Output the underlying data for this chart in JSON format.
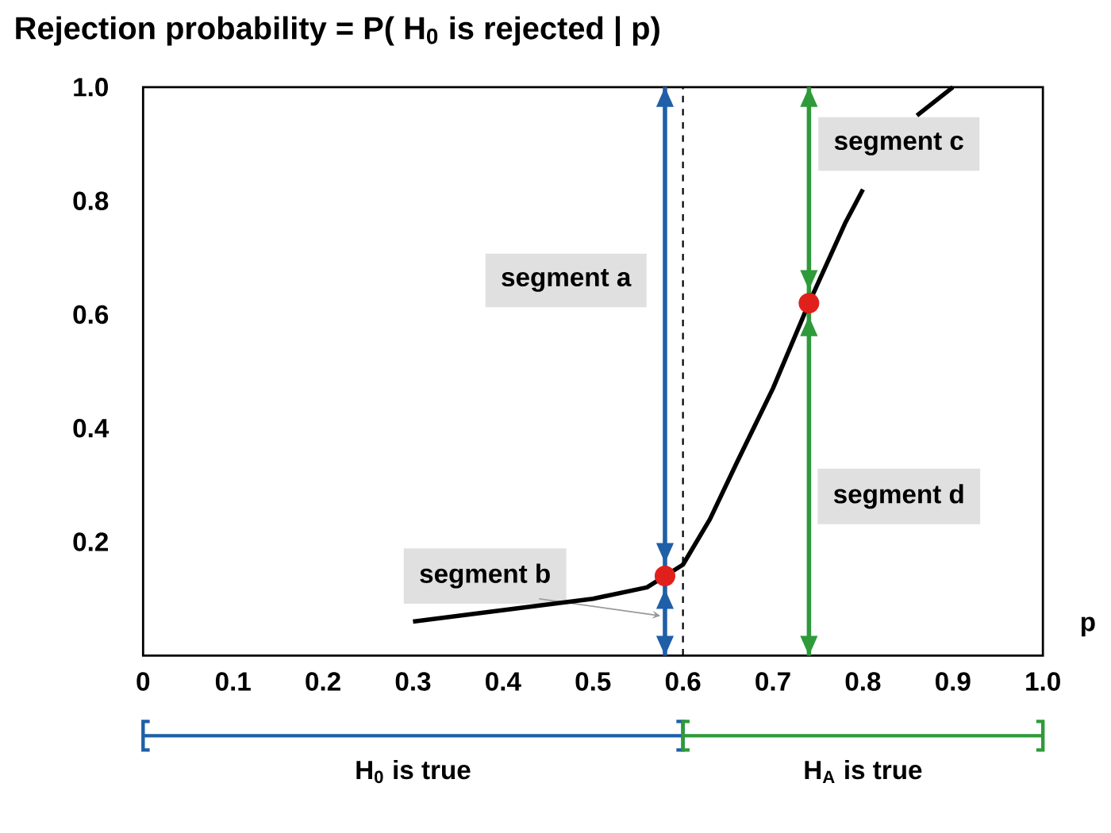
{
  "chart_data": {
    "type": "line",
    "title": "Rejection probability = P( H$_{0}$ is rejected | p)",
    "xlabel": "p",
    "xlim": [
      0,
      1
    ],
    "ylim": [
      0,
      1
    ],
    "xticks": [
      0,
      0.1,
      0.2,
      0.3,
      0.4,
      0.5,
      0.6,
      0.7,
      0.8,
      0.9,
      {
        "value": 1,
        "label": "1.0"
      }
    ],
    "yticks": [
      0.2,
      0.4,
      0.6,
      0.8,
      {
        "value": 1,
        "label": "1.0"
      }
    ],
    "series": [
      {
        "color": "#000000",
        "x": [
          0.3,
          0.4,
          0.5,
          0.56,
          0.6,
          0.63,
          0.66,
          0.7,
          0.74,
          0.78,
          0.8,
          0.83,
          0.86,
          0.9
        ],
        "values": [
          0.06,
          0.08,
          0.1,
          0.12,
          0.16,
          0.24,
          0.34,
          0.47,
          0.62,
          0.76,
          0.82,
          null,
          0.95,
          1.0
        ]
      },
      {
        "type": "scatter",
        "color": "#e0201b",
        "marker": "circle",
        "x": [
          0.58,
          0.74
        ],
        "values": [
          0.14,
          0.62
        ],
        "errors": [
          [
            0,
            1
          ],
          [
            0,
            1
          ]
        ]
      }
    ],
    "ref_lines": [
      {
        "axis": "x",
        "value": 0.6,
        "color": "#000000",
        "line_style": "dashed"
      }
    ],
    "annotations": [
      "segment a",
      "segment b",
      "segment c",
      "segment d",
      "H$_{0}$ is true",
      "H$_{A}$ is true"
    ]
  }
}
